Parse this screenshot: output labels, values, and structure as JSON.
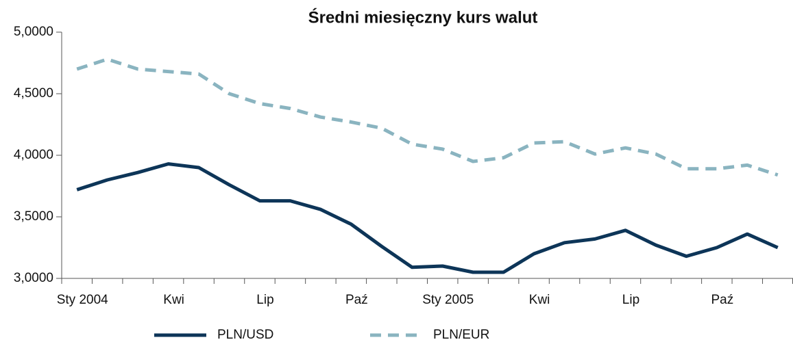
{
  "chart_data": {
    "type": "line",
    "title": "Średni miesięczny kurs walut",
    "categories": [
      "Sty 2004",
      null,
      null,
      "Kwi",
      null,
      null,
      "Lip",
      null,
      null,
      "Paź",
      null,
      null,
      "Sty 2005",
      null,
      null,
      "Kwi",
      null,
      null,
      "Lip",
      null,
      null,
      "Paź",
      null,
      null
    ],
    "series": [
      {
        "name": "PLN/USD",
        "color": "#0d3558",
        "dashed": false,
        "values": [
          3.72,
          3.8,
          3.86,
          3.93,
          3.9,
          3.76,
          3.63,
          3.63,
          3.56,
          3.44,
          3.26,
          3.09,
          3.1,
          3.05,
          3.05,
          3.2,
          3.29,
          3.32,
          3.39,
          3.27,
          3.18,
          3.25,
          3.36,
          3.25
        ]
      },
      {
        "name": "PLN/EUR",
        "color": "#8ab4c0",
        "dashed": true,
        "values": [
          4.7,
          4.78,
          4.7,
          4.68,
          4.66,
          4.5,
          4.42,
          4.38,
          4.31,
          4.27,
          4.22,
          4.09,
          4.05,
          3.95,
          3.98,
          4.1,
          4.11,
          4.01,
          4.06,
          4.01,
          3.89,
          3.89,
          3.92,
          3.84
        ]
      }
    ],
    "ylim": [
      3,
      5
    ],
    "yticks": [
      {
        "value": 3,
        "label": "3,0000"
      },
      {
        "value": 3.5,
        "label": "3,5000"
      },
      {
        "value": 4,
        "label": "4,0000"
      },
      {
        "value": 4.5,
        "label": "4,5000"
      },
      {
        "value": 5,
        "label": "5,0000"
      }
    ],
    "legend": "bottom"
  }
}
